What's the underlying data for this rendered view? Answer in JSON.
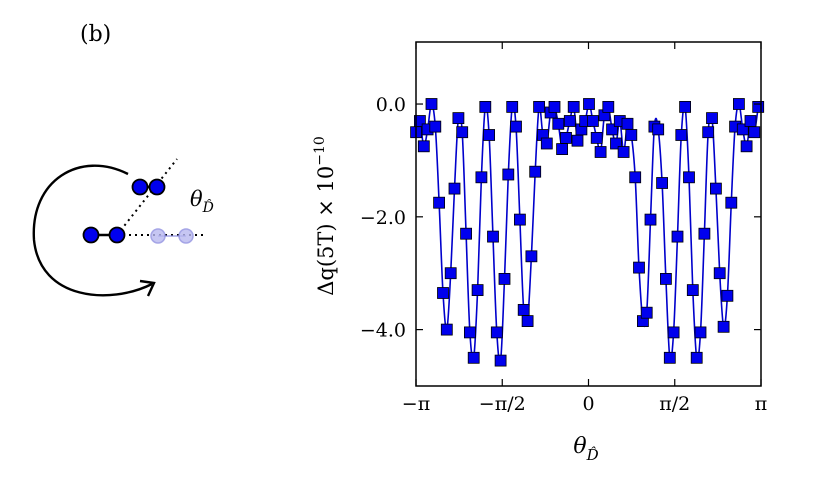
{
  "panel_label": "(b)",
  "diagram": {
    "angle_label": "θ",
    "angle_label_sub": "D̂",
    "colors": {
      "molecule": "#0000ee",
      "ghost": "#8f8fe0",
      "stroke": "#000000"
    }
  },
  "chart_data": {
    "type": "scatter",
    "title": "",
    "xlabel": "θ",
    "xlabel_sub": "D̂",
    "ylabel": "Δq(5T) × 10",
    "ylabel_exp": "−10",
    "xlim": [
      -3.14159,
      3.14159
    ],
    "ylim": [
      -5.0,
      1.1
    ],
    "xticks": [
      {
        "value": -3.14159,
        "label": "−π"
      },
      {
        "value": -1.5708,
        "label": "−π/2"
      },
      {
        "value": 0,
        "label": "0"
      },
      {
        "value": 1.5708,
        "label": "π/2"
      },
      {
        "value": 3.14159,
        "label": "π"
      }
    ],
    "yticks": [
      {
        "value": 0.0,
        "label": "0.0"
      },
      {
        "value": -2.0,
        "label": "−2.0"
      },
      {
        "value": -4.0,
        "label": "−4.0"
      }
    ],
    "grid": false,
    "color": "#0000cc",
    "marker_color": "#0000ee",
    "series": [
      {
        "marker": "square",
        "x": [
          -3.14,
          -3.07,
          -3.0,
          -2.93,
          -2.86,
          -2.79,
          -2.72,
          -2.65,
          -2.58,
          -2.51,
          -2.44,
          -2.37,
          -2.3,
          -2.23,
          -2.16,
          -2.09,
          -2.02,
          -1.95,
          -1.88,
          -1.81,
          -1.74,
          -1.67,
          -1.6,
          -1.53,
          -1.46,
          -1.39,
          -1.32,
          -1.25,
          -1.18,
          -1.11,
          -1.04,
          -0.97,
          -0.9,
          -0.83,
          -0.76,
          -0.69,
          -0.62,
          -0.55,
          -0.48,
          -0.41,
          -0.34,
          -0.27,
          -0.2,
          -0.13,
          -0.06,
          0.01,
          0.08,
          0.15,
          0.22,
          0.29,
          0.36,
          0.43,
          0.5,
          0.57,
          0.64,
          0.71,
          0.78,
          0.85,
          0.92,
          0.99,
          1.06,
          1.13,
          1.2,
          1.27,
          1.34,
          1.41,
          1.48,
          1.55,
          1.62,
          1.69,
          1.76,
          1.83,
          1.9,
          1.97,
          2.04,
          2.11,
          2.18,
          2.25,
          2.32,
          2.39,
          2.46,
          2.53,
          2.6,
          2.67,
          2.74,
          2.81,
          2.88,
          2.95,
          3.02,
          3.09
        ],
        "y": [
          -0.5,
          -0.3,
          -0.75,
          -0.45,
          0.0,
          -0.4,
          -1.75,
          -3.35,
          -4.0,
          -3.0,
          -1.5,
          -0.25,
          -0.5,
          -2.3,
          -4.05,
          -4.5,
          -3.3,
          -1.3,
          -0.05,
          -0.55,
          -2.35,
          -4.05,
          -4.55,
          -3.1,
          -1.25,
          -0.05,
          -0.4,
          -2.05,
          -3.65,
          -3.85,
          -2.7,
          -1.2,
          -0.05,
          -0.55,
          -0.7,
          -0.15,
          -0.05,
          -0.35,
          -0.8,
          -0.6,
          -0.3,
          -0.05,
          -0.65,
          -0.45,
          -0.3,
          0.0,
          -0.3,
          -0.6,
          -0.85,
          -0.2,
          -0.05,
          -0.45,
          -0.7,
          -0.3,
          -0.85,
          -0.35,
          -0.55,
          -1.3,
          -2.9,
          -3.85,
          -3.7,
          -2.05,
          -0.4,
          -0.45,
          -1.4,
          -3.1,
          -4.5,
          -4.05,
          -2.35,
          -0.55,
          -0.05,
          -1.3,
          -3.3,
          -4.5,
          -4.05,
          -2.3,
          -0.5,
          -0.25,
          -1.5,
          -3.0,
          -3.95,
          -3.4,
          -1.75,
          -0.4,
          0.0,
          -0.45,
          -0.75,
          -0.3,
          -0.5,
          -0.05
        ]
      }
    ]
  }
}
